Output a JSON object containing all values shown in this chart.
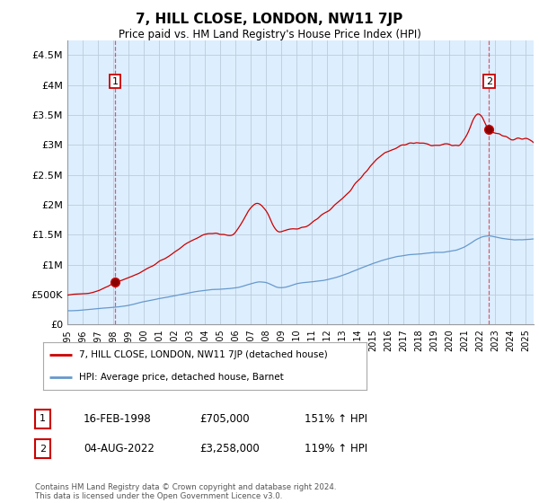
{
  "title": "7, HILL CLOSE, LONDON, NW11 7JP",
  "subtitle": "Price paid vs. HM Land Registry's House Price Index (HPI)",
  "x_start": 1995.0,
  "x_end": 2025.5,
  "y_min": 0,
  "y_max": 4750000,
  "yticks": [
    0,
    500000,
    1000000,
    1500000,
    2000000,
    2500000,
    3000000,
    3500000,
    4000000,
    4500000
  ],
  "ytick_labels": [
    "£0",
    "£500K",
    "£1M",
    "£1.5M",
    "£2M",
    "£2.5M",
    "£3M",
    "£3.5M",
    "£4M",
    "£4.5M"
  ],
  "xtick_years": [
    1995,
    1996,
    1997,
    1998,
    1999,
    2000,
    2001,
    2002,
    2003,
    2004,
    2005,
    2006,
    2007,
    2008,
    2009,
    2010,
    2011,
    2012,
    2013,
    2014,
    2015,
    2016,
    2017,
    2018,
    2019,
    2020,
    2021,
    2022,
    2023,
    2024,
    2025
  ],
  "sale1_x": 1998.125,
  "sale1_y": 705000,
  "sale1_label": "1",
  "sale1_date": "16-FEB-1998",
  "sale1_price": "£705,000",
  "sale1_hpi": "151% ↑ HPI",
  "sale2_x": 2022.586,
  "sale2_y": 3258000,
  "sale2_label": "2",
  "sale2_date": "04-AUG-2022",
  "sale2_price": "£3,258,000",
  "sale2_hpi": "119% ↑ HPI",
  "legend_label_red": "7, HILL CLOSE, LONDON, NW11 7JP (detached house)",
  "legend_label_blue": "HPI: Average price, detached house, Barnet",
  "footer": "Contains HM Land Registry data © Crown copyright and database right 2024.\nThis data is licensed under the Open Government Licence v3.0.",
  "red_color": "#cc0000",
  "blue_color": "#6699cc",
  "dashed_color": "#cc0000",
  "bg_color": "#ddeeff",
  "plot_bg": "#ffffff",
  "grid_color": "#bbccdd"
}
